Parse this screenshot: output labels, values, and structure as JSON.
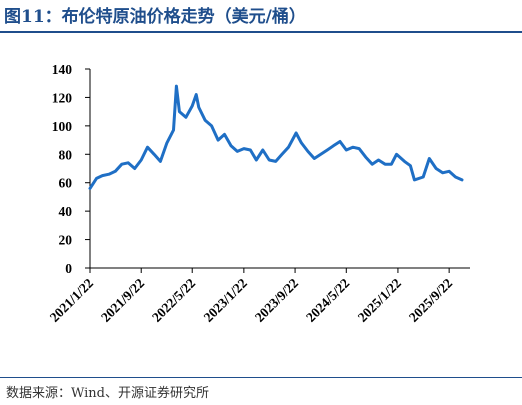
{
  "title": "图11：布伦特原油价格走势（美元/桶）",
  "source": "数据来源：Wind、开源证券研究所",
  "colors": {
    "line": "#1f6fc5",
    "accent": "#1f4e8c",
    "axis": "#000000"
  },
  "chart_data": {
    "type": "line",
    "title": "布伦特原油价格走势（美元/桶）",
    "xlabel": "",
    "ylabel": "",
    "ylim": [
      0,
      140
    ],
    "yticks": [
      0,
      20,
      40,
      60,
      80,
      100,
      120,
      140
    ],
    "xticks": [
      "2021/1/22",
      "2021/9/22",
      "2022/5/22",
      "2023/1/22",
      "2023/9/22",
      "2024/5/22",
      "2025/1/22",
      "2025/9/22"
    ],
    "grid": false,
    "legend": "none",
    "series": [
      {
        "name": "",
        "x": [
          "2021-01-22",
          "2021-02-22",
          "2021-03-22",
          "2021-04-22",
          "2021-05-22",
          "2021-06-22",
          "2021-07-22",
          "2021-08-22",
          "2021-09-22",
          "2021-10-22",
          "2021-11-22",
          "2021-12-22",
          "2022-01-22",
          "2022-02-22",
          "2022-03-08",
          "2022-03-22",
          "2022-04-22",
          "2022-05-22",
          "2022-06-10",
          "2022-06-22",
          "2022-07-22",
          "2022-08-22",
          "2022-09-22",
          "2022-10-22",
          "2022-11-22",
          "2022-12-22",
          "2023-01-22",
          "2023-02-22",
          "2023-03-22",
          "2023-04-22",
          "2023-05-22",
          "2023-06-22",
          "2023-07-22",
          "2023-08-22",
          "2023-09-27",
          "2023-10-22",
          "2023-11-22",
          "2023-12-22",
          "2024-01-22",
          "2024-02-22",
          "2024-03-22",
          "2024-04-22",
          "2024-05-22",
          "2024-06-22",
          "2024-07-22",
          "2024-08-22",
          "2024-09-22",
          "2024-10-22",
          "2024-11-22",
          "2024-12-22",
          "2025-01-15",
          "2025-02-22",
          "2025-03-22",
          "2025-04-10",
          "2025-05-22",
          "2025-06-20",
          "2025-07-22",
          "2025-08-22",
          "2025-09-22",
          "2025-10-22",
          "2025-11-22"
        ],
        "y": [
          56,
          63,
          65,
          66,
          68,
          73,
          74,
          70,
          76,
          85,
          80,
          75,
          88,
          97,
          128,
          110,
          106,
          114,
          122,
          113,
          104,
          100,
          90,
          94,
          86,
          82,
          84,
          83,
          76,
          83,
          76,
          75,
          80,
          85,
          95,
          88,
          82,
          77,
          80,
          83,
          86,
          89,
          83,
          85,
          84,
          78,
          73,
          76,
          73,
          73,
          80,
          75,
          72,
          62,
          64,
          77,
          70,
          67,
          68,
          64,
          62
        ]
      }
    ]
  }
}
